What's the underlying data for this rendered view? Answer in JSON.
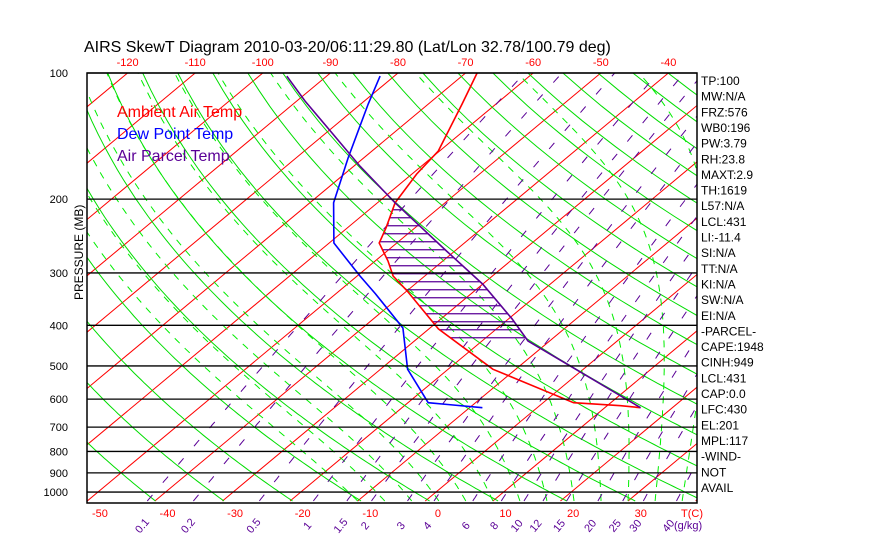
{
  "title": "AIRS SkewT Diagram 2010-03-20/06:11:29.80 (Lat/Lon 32.78/100.79 deg)",
  "legend": [
    {
      "label": "Ambient Air Temp",
      "color": "#ff0000"
    },
    {
      "label": "Dew Point Temp",
      "color": "#0000ff"
    },
    {
      "label": "Air Parcel Temp",
      "color": "#5a0096"
    }
  ],
  "indices": [
    "TP:100",
    "MW:N/A",
    "FRZ:576",
    "WB0:196",
    "PW:3.79",
    "RH:23.8",
    "MAXT:2.9",
    "TH:1619",
    "L57:N/A",
    "LCL:431",
    "LI:-11.4",
    "SI:N/A",
    "TT:N/A",
    "KI:N/A",
    "SW:N/A",
    "EI:N/A",
    "-PARCEL-",
    "CAPE:1948",
    "CINH:949",
    "LCL:431",
    "CAP:0.0",
    "LFC:430",
    "EL:201",
    "MPL:117",
    "-WIND-",
    "NOT",
    "AVAIL"
  ],
  "chart_data": {
    "type": "line",
    "title": "AIRS SkewT Diagram 2010-03-20/06:11:29.80 (Lat/Lon 32.78/100.79 deg)",
    "ylabel": "PRESSURE (MB)",
    "xlabel": "T(C)",
    "mixing_ratio_label": "(g/kg)",
    "ylim": [
      1000,
      100
    ],
    "y_ticks": [
      "100",
      "200",
      "300",
      "400",
      "500",
      "600",
      "700",
      "800",
      "900",
      "1000"
    ],
    "y_tick_values": [
      100,
      200,
      300,
      400,
      500,
      600,
      700,
      800,
      900,
      1000
    ],
    "x_ticks_top": [
      "-120",
      "-110",
      "-100",
      "-90",
      "-80",
      "-70",
      "-60",
      "-50",
      "-40"
    ],
    "x_tick_top_values": [
      -120,
      -110,
      -100,
      -90,
      -80,
      -70,
      -60,
      -50,
      -40
    ],
    "x_ticks_bottom": [
      "-50",
      "-40",
      "-30",
      "-20",
      "-10",
      "0",
      "10",
      "20",
      "30"
    ],
    "x_tick_bottom_values": [
      -50,
      -40,
      -30,
      -20,
      -10,
      0,
      10,
      20,
      30
    ],
    "mixing_ratio_ticks": [
      "0.1",
      "0.2",
      "0.5",
      "1",
      "1.5",
      "2",
      "3",
      "4",
      "6",
      "8",
      "10",
      "12",
      "15",
      "20",
      "25",
      "30",
      "40"
    ],
    "mixing_ratio_values": [
      0.1,
      0.2,
      0.5,
      1,
      1.5,
      2,
      3,
      4,
      6,
      8,
      10,
      12,
      15,
      20,
      25,
      30,
      40
    ],
    "series": [
      {
        "name": "Ambient Air Temp",
        "color": "#ff0000",
        "points": [
          [
            100,
            -68.3
          ],
          [
            118.6,
            -65.0
          ],
          [
            153.5,
            -60.2
          ],
          [
            174.3,
            -59.3
          ],
          [
            204,
            -57.4
          ],
          [
            234,
            -54.3
          ],
          [
            254.5,
            -52.6
          ],
          [
            281,
            -48.1
          ],
          [
            305,
            -44.7
          ],
          [
            331,
            -40.0
          ],
          [
            408,
            -28.6
          ],
          [
            509,
            -13.4
          ],
          [
            612,
            4.5
          ],
          [
            622,
            12.0
          ],
          [
            629,
            15.3
          ]
        ]
      },
      {
        "name": "Dew Point Temp",
        "color": "#0000ff",
        "points": [
          [
            101.7,
            -82.1
          ],
          [
            118.6,
            -78.9
          ],
          [
            159.5,
            -72.3
          ],
          [
            204,
            -66.5
          ],
          [
            254.5,
            -59.3
          ],
          [
            281,
            -54.0
          ],
          [
            305,
            -49.6
          ],
          [
            336,
            -44.2
          ],
          [
            406,
            -34.0
          ],
          [
            509,
            -26.0
          ],
          [
            612,
            -17.0
          ],
          [
            618,
            -13.8
          ],
          [
            629,
            -8.1
          ]
        ]
      },
      {
        "name": "Air Parcel Temp",
        "color": "#5a0096",
        "points": [
          [
            629,
            15.3
          ],
          [
            436,
            -13.2
          ],
          [
            386,
            -19.5
          ],
          [
            319,
            -30.0
          ],
          [
            266,
            -41.2
          ],
          [
            204,
            -57.4
          ],
          [
            166.8,
            -69.1
          ],
          [
            139.8,
            -78.8
          ],
          [
            116.6,
            -88.8
          ],
          [
            101.7,
            -95.9
          ]
        ]
      }
    ],
    "cape_hatch_range_mb": [
      212,
      440
    ],
    "grid": {
      "isotherm_color": "#ff0000",
      "dry_adiabat_color": "#00dd00",
      "moist_adiabat_color": "#00ee00",
      "mixing_ratio_color": "#5a0096",
      "isobar_color": "#000000"
    }
  }
}
